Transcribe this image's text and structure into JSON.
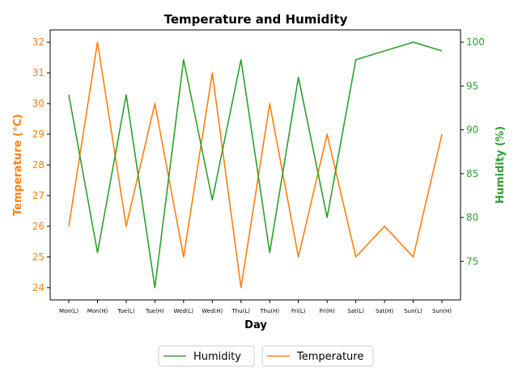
{
  "chart_data": {
    "type": "line",
    "title": "Temperature and Humidity",
    "xlabel": "Day",
    "categories": [
      "Mon(L)",
      "Mon(H)",
      "Tue(L)",
      "Tue(H)",
      "Wed(L)",
      "Wed(H)",
      "Thu(L)",
      "Thu(H)",
      "Fri(L)",
      "Fri(H)",
      "Sat(L)",
      "Sat(H)",
      "Sun(L)",
      "Sun(H)"
    ],
    "left_axis": {
      "label": "Temperature (°C)",
      "ylim": [
        23.6,
        32.4
      ],
      "ticks": [
        24,
        25,
        26,
        27,
        28,
        29,
        30,
        31,
        32
      ],
      "color": "#ff7f0e"
    },
    "right_axis": {
      "label": "Humidity (%)",
      "ylim": [
        70.6,
        101.4
      ],
      "ticks": [
        75,
        80,
        85,
        90,
        95,
        100
      ],
      "color": "#2ca02c"
    },
    "series": [
      {
        "name": "Temperature",
        "axis": "left",
        "color": "#ff7f0e",
        "values": [
          26,
          32,
          26,
          30,
          25,
          31,
          24,
          30,
          25,
          29,
          25,
          26,
          25,
          29
        ]
      },
      {
        "name": "Humidity",
        "axis": "right",
        "color": "#2ca02c",
        "values": [
          94,
          76,
          94,
          72,
          98,
          82,
          98,
          76,
          96,
          80,
          98,
          99,
          100,
          99
        ]
      }
    ],
    "legend": {
      "placement": "bottom-center",
      "entries": [
        {
          "label": "Humidity",
          "color": "#2ca02c"
        },
        {
          "label": "Temperature",
          "color": "#ff7f0e"
        }
      ]
    },
    "grid": false
  }
}
